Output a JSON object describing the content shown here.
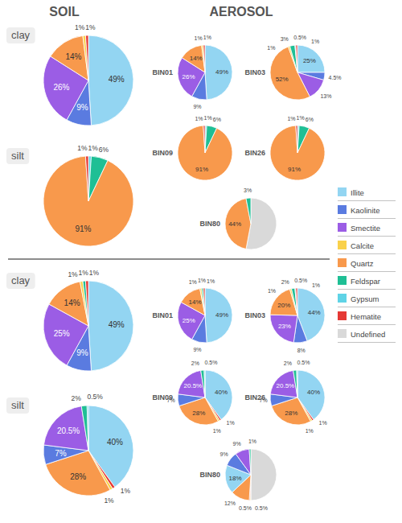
{
  "headers": [
    "SOIL",
    "AEROSOL"
  ],
  "key": {
    "names": [
      "Illite",
      "Kaolinite",
      "Smectite",
      "Calcite",
      "Quartz",
      "Feldspar",
      "Gypsum",
      "Hematite",
      "Undefined"
    ],
    "colors": [
      "#93d5f2",
      "#5a7be0",
      "#9b5de5",
      "#f9d14b",
      "#f8994c",
      "#1fbf95",
      "#5fd3e6",
      "#e53935",
      "#d9d9d9"
    ]
  },
  "chart_data": [
    {
      "type": "pie",
      "title": "clay",
      "data_labels": true,
      "categories": [
        "Illite",
        "Kaolinite",
        "Smectite",
        "Quartz",
        "Calcite",
        "Hematite"
      ],
      "values": [
        49,
        9,
        26,
        14,
        1,
        1
      ],
      "value_labels": [
        "49%",
        "9%",
        "26%",
        "14%",
        "1%",
        "1%"
      ]
    },
    {
      "type": "pie",
      "title": "silt",
      "data_labels": true,
      "categories": [
        "Gypsum",
        "Feldspar",
        "Quartz",
        "Hematite"
      ],
      "values": [
        1,
        6,
        91,
        1
      ],
      "value_labels": [
        "1%",
        "6%",
        "91%",
        "1%"
      ]
    },
    {
      "type": "pie",
      "title": "BIN01",
      "data_labels": true,
      "categories": [
        "Illite",
        "Kaolinite",
        "Smectite",
        "Quartz",
        "Calcite",
        "Hematite"
      ],
      "values": [
        49,
        9,
        26,
        14,
        1,
        1
      ],
      "value_labels": [
        "49%",
        "9%",
        "26%",
        "14%",
        "1%",
        "1%"
      ]
    },
    {
      "type": "pie",
      "title": "BIN03",
      "data_labels": true,
      "categories": [
        "Illite",
        "Kaolinite",
        "Smectite",
        "Quartz",
        "Calcite",
        "Feldspar",
        "Gypsum",
        "Hematite"
      ],
      "values": [
        25,
        4.5,
        13,
        52,
        1,
        3,
        0.5,
        1
      ],
      "value_labels": [
        "25%",
        "4.5%",
        "13%",
        "52%",
        "1%",
        "3%",
        "0.5%",
        "1%"
      ]
    },
    {
      "type": "pie",
      "title": "BIN09",
      "data_labels": true,
      "categories": [
        "Gypsum",
        "Feldspar",
        "Quartz",
        "Hematite"
      ],
      "values": [
        1,
        6,
        91,
        1
      ],
      "value_labels": [
        "1%",
        "6%",
        "91%",
        "1%"
      ]
    },
    {
      "type": "pie",
      "title": "BIN26",
      "data_labels": true,
      "categories": [
        "Gypsum",
        "Feldspar",
        "Quartz",
        "Hematite"
      ],
      "values": [
        1,
        6,
        91,
        1
      ],
      "value_labels": [
        "1%",
        "6%",
        "91%",
        "1%"
      ]
    },
    {
      "type": "pie",
      "title": "BIN80",
      "data_labels": true,
      "categories": [
        "Undefined",
        "Quartz",
        "Feldspar"
      ],
      "values": [
        53,
        44,
        3
      ],
      "value_labels": [
        null,
        "44%",
        "3%"
      ]
    },
    {
      "type": "pie",
      "title": "clay",
      "data_labels": true,
      "categories": [
        "Illite",
        "Kaolinite",
        "Smectite",
        "Quartz",
        "Calcite",
        "Feldspar",
        "Hematite"
      ],
      "values": [
        49,
        9,
        25,
        14,
        1,
        1,
        1
      ],
      "value_labels": [
        "49%",
        "9%",
        "25%",
        "14%",
        "1%",
        "1%",
        "1%"
      ]
    },
    {
      "type": "pie",
      "title": "silt",
      "data_labels": true,
      "categories": [
        "Illite",
        "Hematite",
        "Calcite",
        "Quartz",
        "Kaolinite",
        "Smectite",
        "Feldspar",
        "Gypsum"
      ],
      "values": [
        40,
        1,
        1,
        28,
        7,
        20.5,
        2,
        0.5
      ],
      "value_labels": [
        "40%",
        "1%",
        "1%",
        "28%",
        "7%",
        "20.5%",
        "2%",
        "0.5%"
      ]
    },
    {
      "type": "pie",
      "title": "BIN01",
      "data_labels": true,
      "categories": [
        "Illite",
        "Kaolinite",
        "Smectite",
        "Quartz",
        "Calcite",
        "Feldspar",
        "Hematite"
      ],
      "values": [
        49,
        9,
        25,
        14,
        1,
        1,
        1
      ],
      "value_labels": [
        "49%",
        "9%",
        "25%",
        "14%",
        "1%",
        "1%",
        "1%"
      ]
    },
    {
      "type": "pie",
      "title": "BIN03",
      "data_labels": true,
      "categories": [
        "Illite",
        "Kaolinite",
        "Smectite",
        "Quartz",
        "Calcite",
        "Feldspar",
        "Gypsum",
        "Hematite"
      ],
      "values": [
        44,
        8,
        23,
        20,
        1,
        2,
        0.5,
        1
      ],
      "value_labels": [
        "44%",
        "8%",
        "23%",
        "20%",
        "1%",
        "2%",
        "0.5%",
        "1%"
      ]
    },
    {
      "type": "pie",
      "title": "BIN09",
      "data_labels": true,
      "categories": [
        "Illite",
        "Hematite",
        "Calcite",
        "Quartz",
        "Kaolinite",
        "Smectite",
        "Feldspar",
        "Gypsum"
      ],
      "values": [
        40,
        1,
        1,
        28,
        7,
        20.5,
        2,
        0.5
      ],
      "value_labels": [
        "40%",
        "1%",
        "1%",
        "28%",
        "7%",
        "20.5%",
        "2%",
        "0.5%"
      ]
    },
    {
      "type": "pie",
      "title": "BIN26",
      "data_labels": true,
      "categories": [
        "Illite",
        "Hematite",
        "Calcite",
        "Quartz",
        "Kaolinite",
        "Smectite",
        "Feldspar",
        "Gypsum"
      ],
      "values": [
        40,
        1,
        1,
        28,
        7,
        20.5,
        2,
        0.5
      ],
      "value_labels": [
        "40%",
        "1%",
        "1%",
        "28%",
        "7%",
        "20.5%",
        "2%",
        "0.5%"
      ]
    },
    {
      "type": "pie",
      "title": "BIN80",
      "data_labels": true,
      "categories": [
        "Undefined",
        "Calcite",
        "Hematite",
        "Quartz",
        "Illite",
        "Kaolinite",
        "Smectite",
        "Feldspar"
      ],
      "values": [
        50,
        0.5,
        0.5,
        12,
        18,
        9,
        9,
        1
      ],
      "value_labels": [
        null,
        "0.5%",
        "0.5%",
        "12%",
        "18%",
        "9%",
        "9%",
        "1%"
      ]
    }
  ]
}
